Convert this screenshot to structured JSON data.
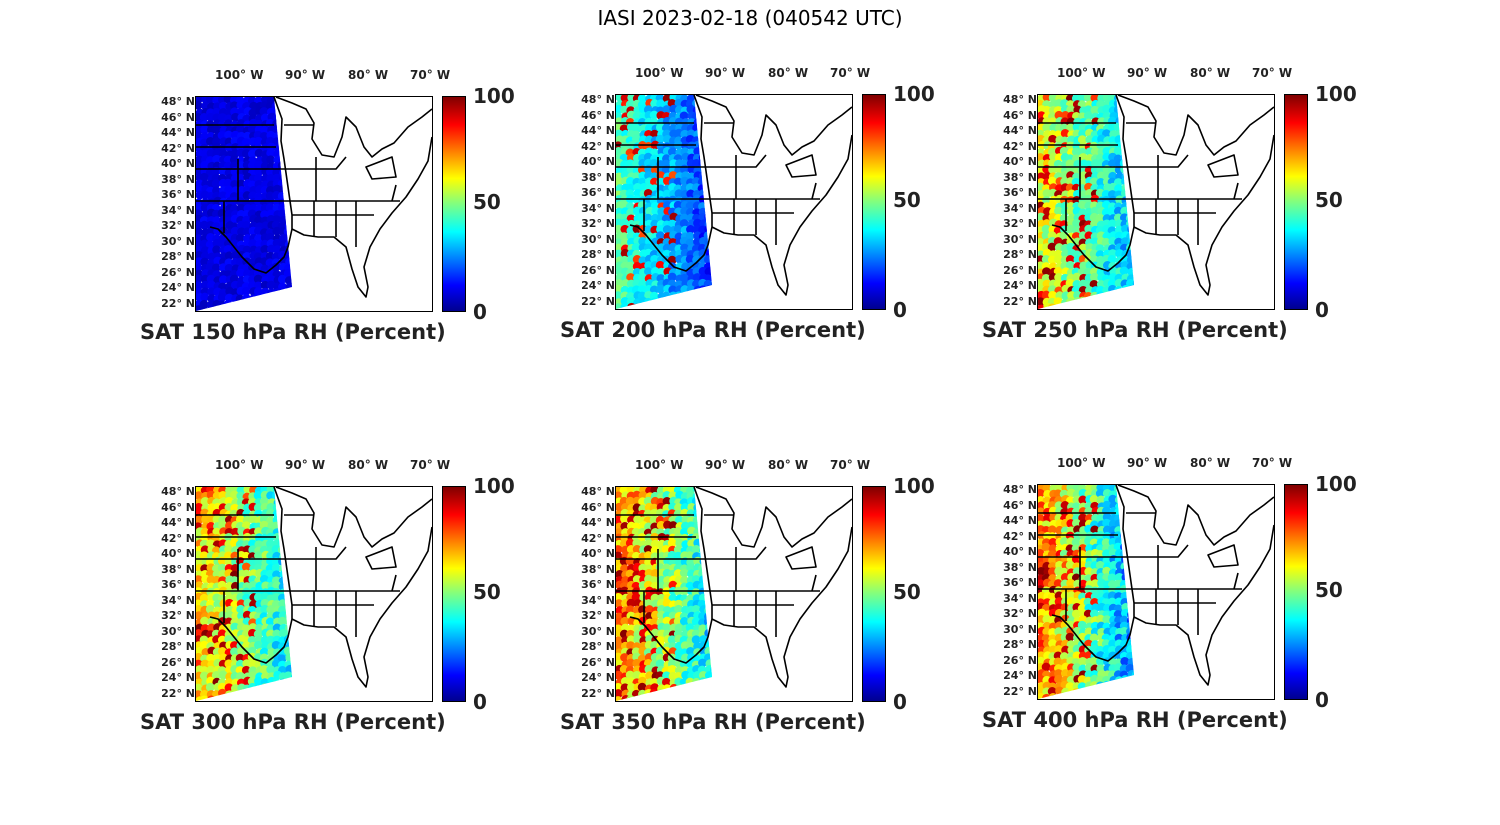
{
  "figure": {
    "title": "IASI 2023-02-18 (040542 UTC)"
  },
  "axes": {
    "lon_ticks": [
      "100° W",
      "90° W",
      "80° W",
      "70° W"
    ],
    "lat_ticks": [
      "48° N",
      "46° N",
      "44° N",
      "42° N",
      "40° N",
      "38° N",
      "36° N",
      "34° N",
      "32° N",
      "30° N",
      "28° N",
      "26° N",
      "24° N",
      "22° N"
    ],
    "colorbar_ticks": [
      "100",
      "50",
      "0"
    ]
  },
  "panels": [
    {
      "title": "SAT 150 hPa RH (Percent)",
      "level_hpa": 150,
      "rh_west": 8,
      "rh_east": 8,
      "moist_fraction": 0.0
    },
    {
      "title": "SAT 200 hPa RH (Percent)",
      "level_hpa": 200,
      "rh_west": 45,
      "rh_east": 15,
      "moist_fraction": 0.25
    },
    {
      "title": "SAT 250 hPa RH (Percent)",
      "level_hpa": 250,
      "rh_west": 60,
      "rh_east": 30,
      "moist_fraction": 0.4
    },
    {
      "title": "SAT 300 hPa RH (Percent)",
      "level_hpa": 300,
      "rh_west": 65,
      "rh_east": 35,
      "moist_fraction": 0.45
    },
    {
      "title": "SAT 350 hPa RH (Percent)",
      "level_hpa": 350,
      "rh_west": 70,
      "rh_east": 35,
      "moist_fraction": 0.5
    },
    {
      "title": "SAT 400 hPa RH (Percent)",
      "level_hpa": 400,
      "rh_west": 72,
      "rh_east": 25,
      "moist_fraction": 0.55
    }
  ],
  "colormap": [
    "#00008f",
    "#0000ff",
    "#00ffff",
    "#80ff80",
    "#ffff00",
    "#ff0000",
    "#800000"
  ]
}
